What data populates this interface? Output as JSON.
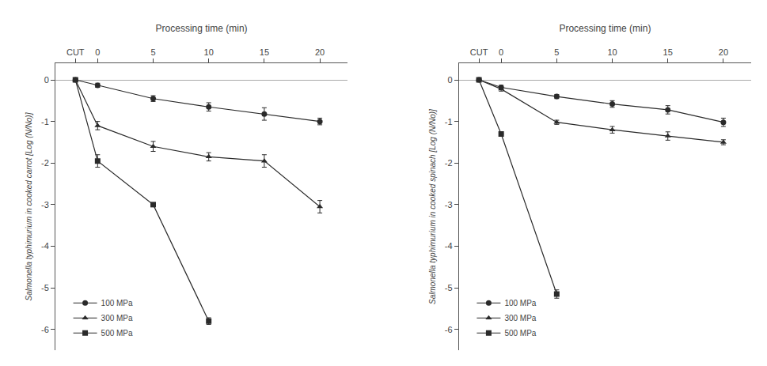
{
  "chart_data": [
    {
      "type": "line",
      "x_label": "Processing time (min)",
      "y_label": "Salmonella typhimurium in cooked carrot [Log (N/No)]",
      "x": [
        -2,
        0,
        5,
        10,
        15,
        20
      ],
      "xlim": [
        -3.8,
        22.5
      ],
      "xticks": [
        {
          "value": -2,
          "label": "CUT"
        },
        0,
        5,
        10,
        15,
        20
      ],
      "ylim": [
        -6.5,
        0.4
      ],
      "yticks": [
        0,
        -1,
        -2,
        -3,
        -4,
        -5,
        -6
      ],
      "grid": false,
      "legend": "lower left",
      "series": [
        {
          "name": "100 MPa",
          "color": "#2a2a2a",
          "marker": "circle",
          "values": [
            0,
            -0.13,
            -0.45,
            -0.65,
            -0.82,
            -1.0
          ],
          "errors": [
            0,
            0.05,
            0.07,
            0.1,
            0.15,
            0.08
          ]
        },
        {
          "name": "300 MPa",
          "color": "#2a2a2a",
          "marker": "triangle-up",
          "values": [
            0,
            -1.1,
            -1.6,
            -1.85,
            -1.95,
            -3.05
          ],
          "errors": [
            0,
            0.1,
            0.12,
            0.1,
            0.15,
            0.15
          ]
        },
        {
          "name": "500 MPa",
          "color": "#2a2a2a",
          "marker": "square",
          "values": [
            0,
            -1.95,
            -3.0,
            -5.8,
            null,
            null
          ],
          "errors": [
            0,
            0.15,
            0.0,
            0.08,
            0,
            0
          ]
        }
      ]
    },
    {
      "type": "line",
      "x_label": "Processing time (min)",
      "y_label": "Salmonella typhimurium in cooked spinach [Log (N/No)]",
      "x": [
        -2,
        0,
        5,
        10,
        15,
        20
      ],
      "xlim": [
        -3.8,
        22.5
      ],
      "xticks": [
        {
          "value": -2,
          "label": "CUT"
        },
        0,
        5,
        10,
        15,
        20
      ],
      "ylim": [
        -6.5,
        0.4
      ],
      "yticks": [
        0,
        -1,
        -2,
        -3,
        -4,
        -5,
        -6
      ],
      "grid": false,
      "legend": "lower left",
      "series": [
        {
          "name": "100 MPa",
          "color": "#2a2a2a",
          "marker": "circle",
          "values": [
            0,
            -0.18,
            -0.4,
            -0.58,
            -0.72,
            -1.02
          ],
          "errors": [
            0,
            0.05,
            0.05,
            0.08,
            0.1,
            0.1
          ]
        },
        {
          "name": "300 MPa",
          "color": "#2a2a2a",
          "marker": "triangle-up",
          "values": [
            0,
            -0.22,
            -1.02,
            -1.2,
            -1.35,
            -1.5
          ],
          "errors": [
            0,
            0.05,
            0.05,
            0.08,
            0.1,
            0.06
          ]
        },
        {
          "name": "500 MPa",
          "color": "#2a2a2a",
          "marker": "square",
          "values": [
            0,
            -1.3,
            -5.15,
            null,
            null,
            null
          ],
          "errors": [
            0,
            0.0,
            0.1,
            0,
            0,
            0
          ]
        }
      ]
    }
  ]
}
